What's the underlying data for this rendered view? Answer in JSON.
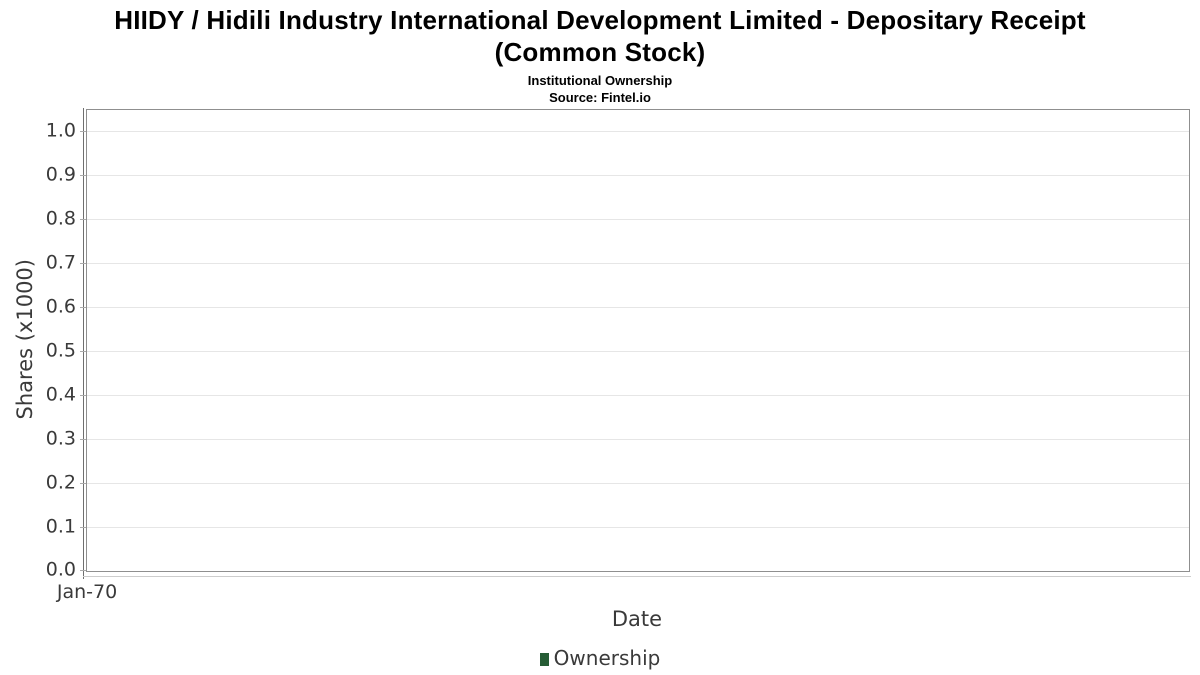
{
  "header": {
    "title_line1": "HIIDY / Hidili Industry International Development Limited - Depositary Receipt",
    "title_line2": "(Common Stock)",
    "subtitle": "Institutional Ownership",
    "source": "Source: Fintel.io"
  },
  "chart_data": {
    "type": "line",
    "title": "HIIDY / Hidili Industry International Development Limited - Depositary Receipt (Common Stock)",
    "subtitle": "Institutional Ownership",
    "source": "Source: Fintel.io",
    "xlabel": "Date",
    "ylabel": "Shares (x1000)",
    "x_ticks": [
      "Jan-70"
    ],
    "y_ticks": [
      0.0,
      0.1,
      0.2,
      0.3,
      0.4,
      0.5,
      0.6,
      0.7,
      0.8,
      0.9,
      1.0
    ],
    "y_tick_labels": [
      "0.0",
      "0.1",
      "0.2",
      "0.3",
      "0.4",
      "0.5",
      "0.6",
      "0.7",
      "0.8",
      "0.9",
      "1.0"
    ],
    "ylim": [
      0,
      1.048
    ],
    "grid": "horizontal",
    "legend_position": "bottom-center",
    "legend": [
      {
        "label": "Ownership",
        "color": "#265c35"
      }
    ],
    "series": [
      {
        "name": "Ownership",
        "color": "#265c35",
        "x": [],
        "y": []
      }
    ]
  },
  "colors": {
    "background": "#ffffff",
    "title_text": "#000000",
    "axis_text": "#3a3a3a",
    "gridline": "#e6e6e6",
    "plot_border": "#8f8f8f",
    "legend_green": "#265c35"
  }
}
